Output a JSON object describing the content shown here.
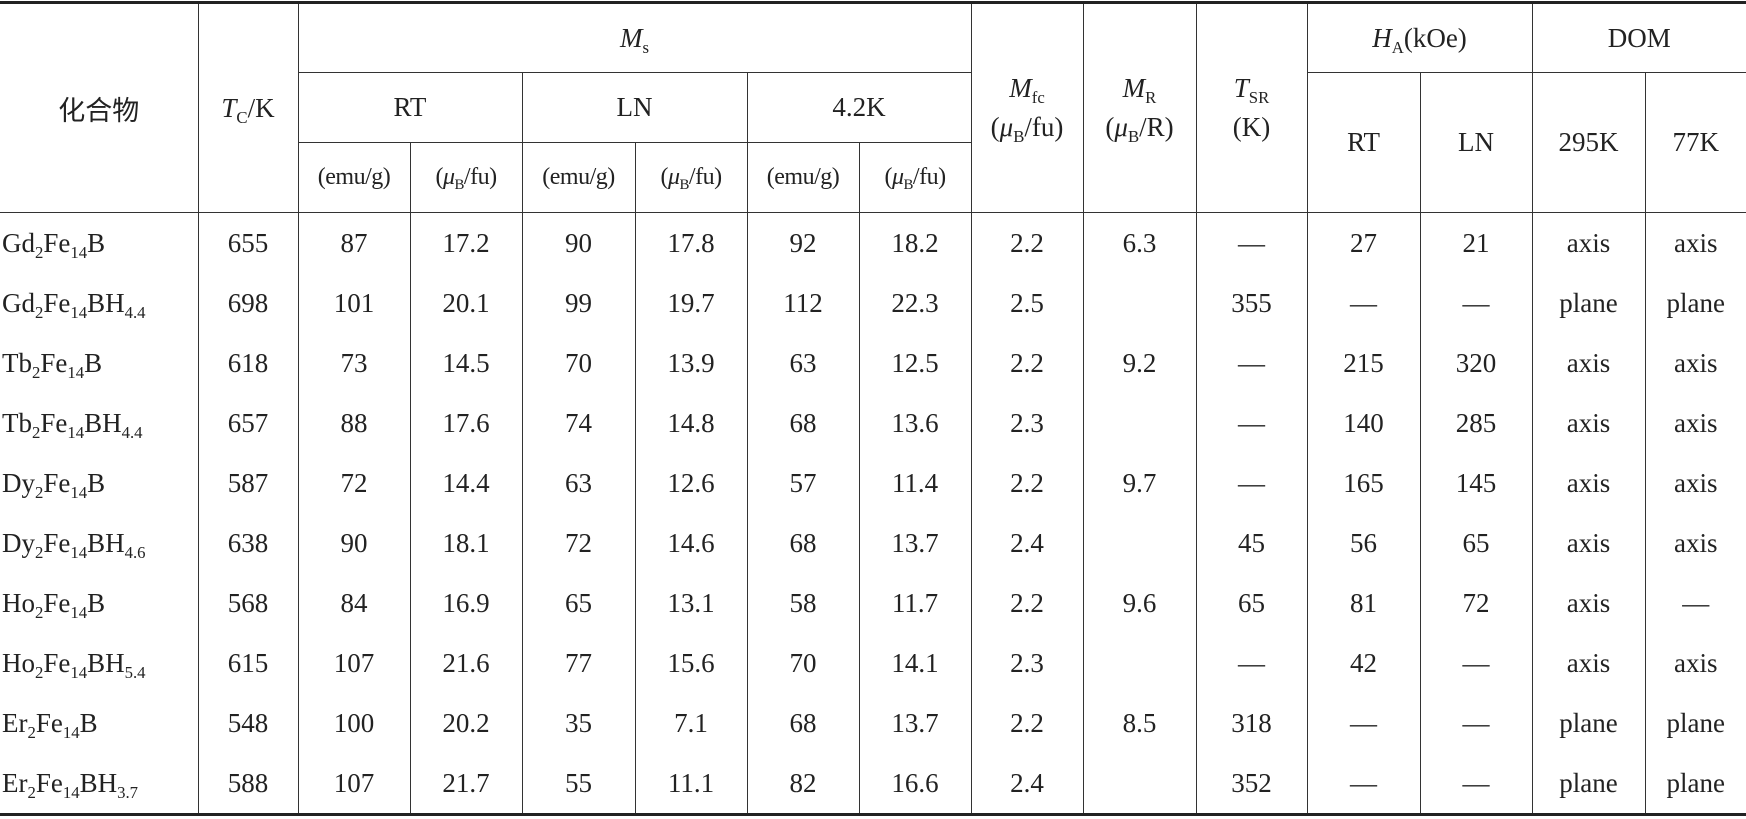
{
  "header": {
    "compound": "化合物",
    "tc": [
      {
        "b": "T",
        "s": "C"
      },
      "/K"
    ],
    "ms": [
      {
        "b": "M",
        "s": "s"
      }
    ],
    "temps": [
      "RT",
      "LN",
      "4.2K"
    ],
    "units": [
      "(emu/g)",
      [
        "(",
        {
          "b": "μ",
          "s": "B"
        },
        "/fu)"
      ]
    ],
    "mfc": [
      {
        "b": "M",
        "s": "fc"
      }
    ],
    "mfc_unit": [
      "(",
      {
        "b": "μ",
        "s": "B"
      },
      "/fu)"
    ],
    "mr": [
      {
        "b": "M",
        "s": "R"
      }
    ],
    "mr_unit": [
      "(",
      {
        "b": "μ",
        "s": "B"
      },
      "/R)"
    ],
    "tsr": [
      {
        "b": "T",
        "s": "SR"
      }
    ],
    "tsr_unit": "(K)",
    "ha": [
      {
        "b": "H",
        "s": "A"
      },
      "(kOe)"
    ],
    "ha_cols": [
      "RT",
      "LN"
    ],
    "dom": "DOM",
    "dom_cols": [
      "295K",
      "77K"
    ]
  },
  "rows": [
    {
      "compound": [
        {
          "b": "Gd",
          "s": "2"
        },
        {
          "b": "Fe",
          "s": "14"
        },
        "B"
      ],
      "cells": [
        655,
        87,
        17.2,
        90,
        17.8,
        92,
        18.2,
        2.2,
        6.3,
        "—",
        27,
        21,
        "axis",
        "axis"
      ]
    },
    {
      "compound": [
        {
          "b": "Gd",
          "s": "2"
        },
        {
          "b": "Fe",
          "s": "14"
        },
        {
          "b": "BH",
          "s": "4.4"
        }
      ],
      "cells": [
        698,
        101,
        20.1,
        99,
        19.7,
        112,
        22.3,
        2.5,
        null,
        355,
        "—",
        "—",
        "plane",
        "plane"
      ]
    },
    {
      "compound": [
        {
          "b": "Tb",
          "s": "2"
        },
        {
          "b": "Fe",
          "s": "14"
        },
        "B"
      ],
      "cells": [
        618,
        73,
        14.5,
        70,
        13.9,
        63,
        12.5,
        2.2,
        9.2,
        "—",
        215,
        320,
        "axis",
        "axis"
      ]
    },
    {
      "compound": [
        {
          "b": "Tb",
          "s": "2"
        },
        {
          "b": "Fe",
          "s": "14"
        },
        {
          "b": "BH",
          "s": "4.4"
        }
      ],
      "cells": [
        657,
        88,
        17.6,
        74,
        14.8,
        68,
        13.6,
        2.3,
        null,
        "—",
        140,
        285,
        "axis",
        "axis"
      ]
    },
    {
      "compound": [
        {
          "b": "Dy",
          "s": "2"
        },
        {
          "b": "Fe",
          "s": "14"
        },
        "B"
      ],
      "cells": [
        587,
        72,
        14.4,
        63,
        12.6,
        57,
        11.4,
        2.2,
        9.7,
        "—",
        165,
        145,
        "axis",
        "axis"
      ]
    },
    {
      "compound": [
        {
          "b": "Dy",
          "s": "2"
        },
        {
          "b": "Fe",
          "s": "14"
        },
        {
          "b": "BH",
          "s": "4.6"
        }
      ],
      "cells": [
        638,
        90,
        18.1,
        72,
        14.6,
        68,
        13.7,
        2.4,
        null,
        45,
        56,
        65,
        "axis",
        "axis"
      ]
    },
    {
      "compound": [
        {
          "b": "Ho",
          "s": "2"
        },
        {
          "b": "Fe",
          "s": "14"
        },
        "B"
      ],
      "cells": [
        568,
        84,
        16.9,
        65,
        13.1,
        58,
        11.7,
        2.2,
        9.6,
        65,
        81,
        72,
        "axis",
        "—"
      ]
    },
    {
      "compound": [
        {
          "b": "Ho",
          "s": "2"
        },
        {
          "b": "Fe",
          "s": "14"
        },
        {
          "b": "BH",
          "s": "5.4"
        }
      ],
      "cells": [
        615,
        107,
        21.6,
        77,
        15.6,
        70,
        14.1,
        2.3,
        null,
        "—",
        42,
        "—",
        "axis",
        "axis"
      ]
    },
    {
      "compound": [
        {
          "b": "Er",
          "s": "2"
        },
        {
          "b": "Fe",
          "s": "14"
        },
        "B"
      ],
      "cells": [
        548,
        100,
        20.2,
        35,
        7.1,
        68,
        13.7,
        2.2,
        8.5,
        318,
        "—",
        "—",
        "plane",
        "plane"
      ]
    },
    {
      "compound": [
        {
          "b": "Er",
          "s": "2"
        },
        {
          "b": "Fe",
          "s": "14"
        },
        {
          "b": "BH",
          "s": "3.7"
        }
      ],
      "cells": [
        588,
        107,
        21.7,
        55,
        11.1,
        82,
        16.6,
        2.4,
        null,
        352,
        "—",
        "—",
        "plane",
        "plane"
      ]
    }
  ]
}
